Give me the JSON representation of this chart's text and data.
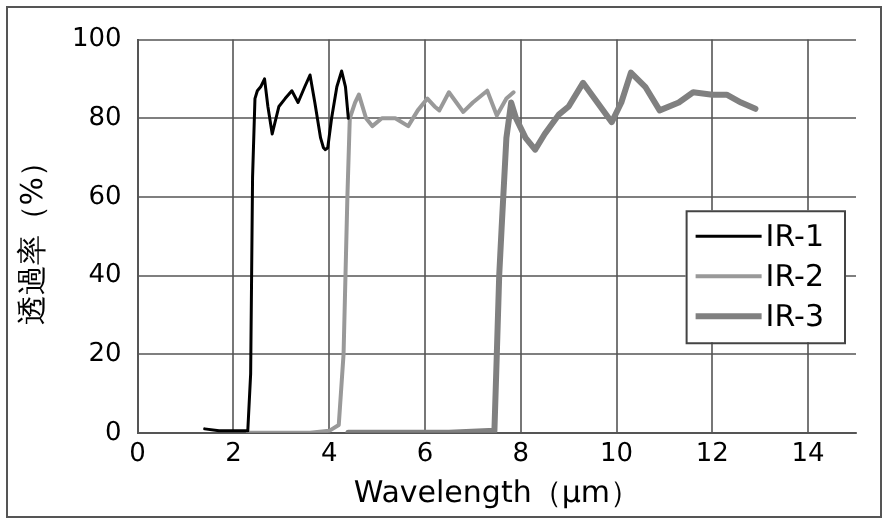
{
  "chart_data": {
    "type": "line",
    "xlabel": "Wavelength（μm）",
    "ylabel": "透過率（%）",
    "xlim": [
      0,
      15
    ],
    "xticks": [
      0,
      2,
      4,
      6,
      8,
      10,
      12,
      14
    ],
    "ylim": [
      0,
      100
    ],
    "yticks": [
      0,
      20,
      40,
      60,
      80,
      100
    ],
    "grid": true,
    "legend": "right",
    "marker": "none",
    "line_style": "solid",
    "series": [
      {
        "name": "IR-1",
        "color": "#000000",
        "x": [
          1.4,
          1.7,
          2.0,
          2.3,
          2.36,
          2.4,
          2.45,
          2.5,
          2.57,
          2.65,
          2.72,
          2.81,
          2.95,
          3.08,
          3.22,
          3.35,
          3.49,
          3.6,
          3.7,
          3.82,
          3.88,
          3.92,
          3.97,
          4.05,
          4.16,
          4.26,
          4.34,
          4.4
        ],
        "values": [
          1,
          0.5,
          0.5,
          0.5,
          15,
          65,
          85,
          87,
          88,
          90,
          83,
          76,
          83,
          85,
          87,
          84,
          88,
          91,
          84,
          75,
          72.5,
          72,
          72.5,
          80,
          88,
          92,
          88,
          80
        ]
      },
      {
        "name": "IR-2",
        "color": "#999999",
        "x": [
          2.3,
          3.0,
          3.6,
          4.0,
          4.2,
          4.3,
          4.38,
          4.43,
          4.54,
          4.62,
          4.77,
          4.9,
          5.1,
          5.38,
          5.65,
          5.85,
          6.05,
          6.2,
          6.3,
          6.5,
          6.8,
          7.0,
          7.3,
          7.5,
          7.7,
          7.85
        ],
        "values": [
          0,
          0,
          0,
          0.5,
          2,
          20,
          60,
          80,
          84,
          86,
          80,
          78,
          80,
          80,
          78,
          82,
          85,
          83,
          82,
          86.6,
          81.6,
          84,
          87,
          80.7,
          85,
          86.6
        ]
      },
      {
        "name": "IR-3",
        "color": "#808080",
        "x": [
          4.4,
          5.5,
          6.5,
          7.45,
          7.5,
          7.55,
          7.6,
          7.7,
          7.8,
          7.9,
          8.1,
          8.3,
          8.5,
          8.8,
          9.0,
          9.3,
          9.6,
          9.9,
          10.1,
          10.3,
          10.6,
          10.9,
          11.3,
          11.6,
          12.0,
          12.3,
          12.6,
          12.9
        ],
        "values": [
          0,
          0,
          0,
          0.5,
          20,
          40,
          52,
          75,
          84,
          80,
          75,
          72,
          76,
          81,
          83,
          89,
          84,
          79,
          84,
          91.6,
          88,
          82,
          84,
          86.6,
          86,
          86,
          84,
          82.4
        ]
      }
    ]
  }
}
